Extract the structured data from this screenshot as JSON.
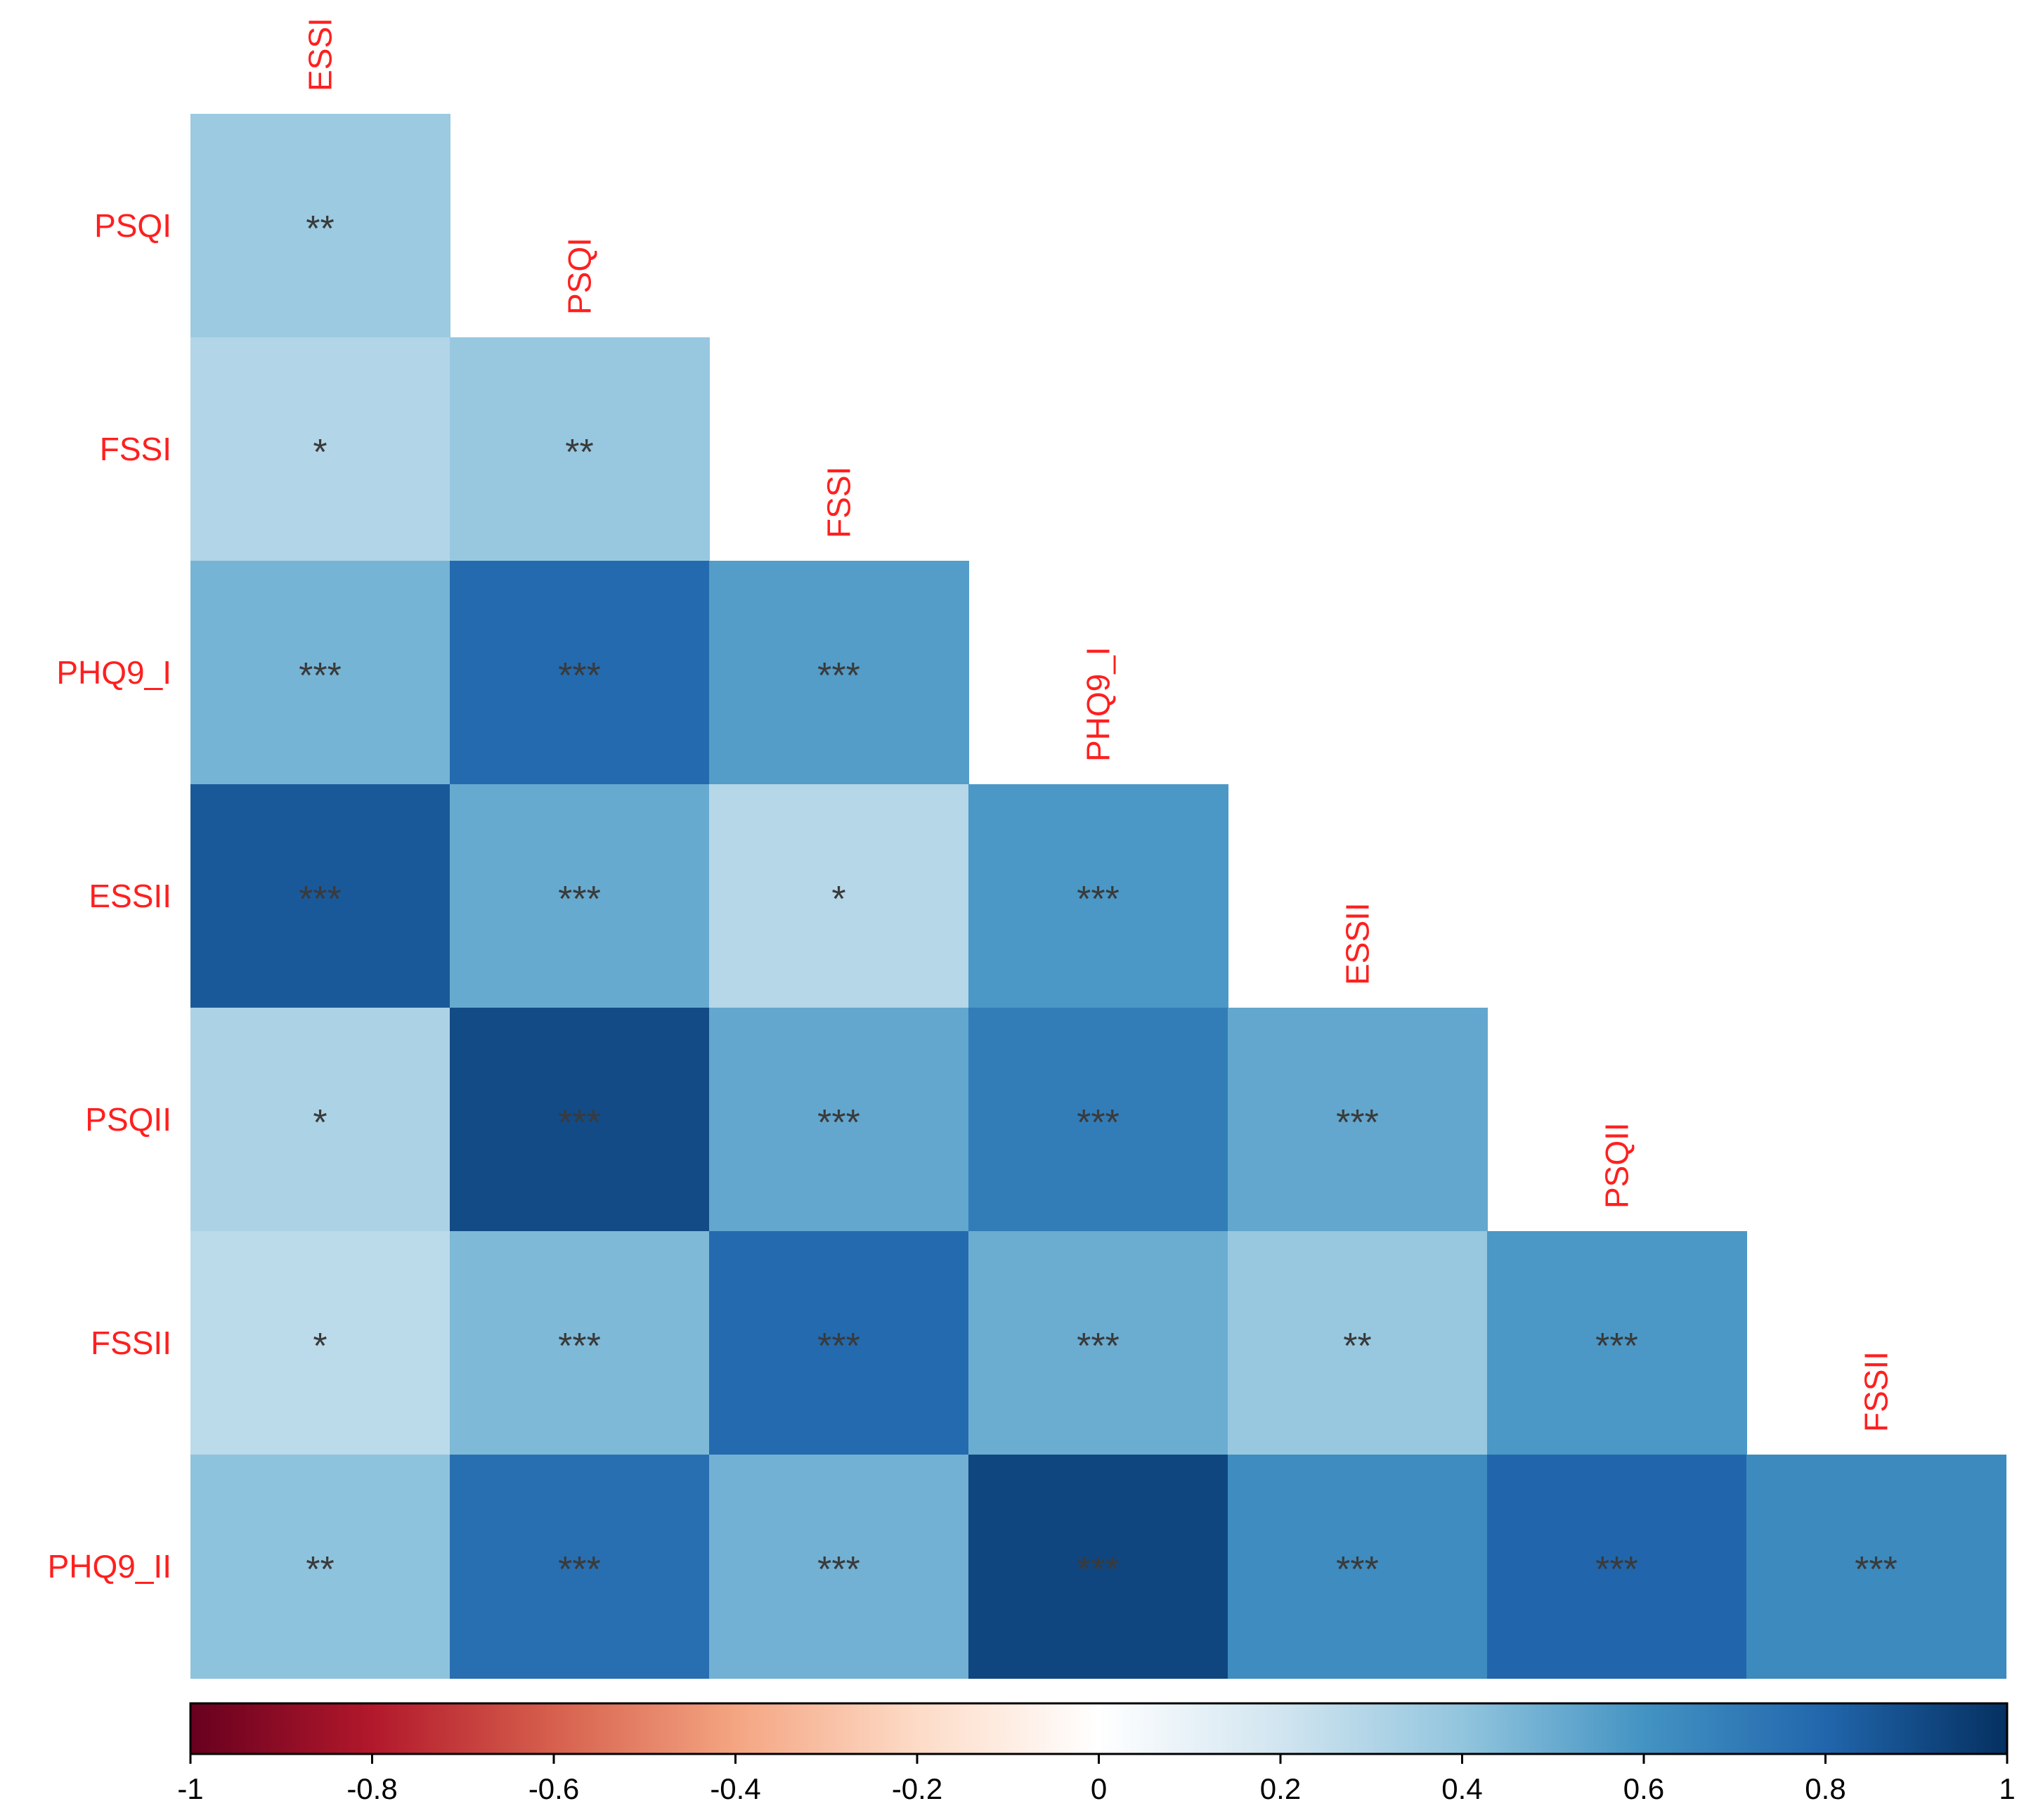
{
  "chart_data": {
    "type": "heatmap",
    "title": "",
    "variables": [
      "ESSI",
      "PSQI",
      "FSSI",
      "PHQ9_I",
      "ESSII",
      "PSQII",
      "FSSII",
      "PHQ9_II"
    ],
    "rows": [
      "PSQI",
      "FSSI",
      "PHQ9_I",
      "ESSII",
      "PSQII",
      "FSSII",
      "PHQ9_II"
    ],
    "columns": [
      "ESSI",
      "PSQI",
      "FSSI",
      "PHQ9_I",
      "ESSII",
      "PSQII",
      "FSSII"
    ],
    "values": [
      [
        0.37
      ],
      [
        0.3,
        0.38
      ],
      [
        0.47,
        0.78,
        0.56
      ],
      [
        0.85,
        0.51,
        0.29,
        0.58
      ],
      [
        0.32,
        0.9,
        0.52,
        0.7,
        0.52
      ],
      [
        0.27,
        0.45,
        0.78,
        0.5,
        0.38,
        0.58
      ],
      [
        0.41,
        0.76,
        0.48,
        0.92,
        0.63,
        0.8,
        0.64
      ]
    ],
    "significance": [
      [
        "**"
      ],
      [
        "*",
        "**"
      ],
      [
        "***",
        "***",
        "***"
      ],
      [
        "***",
        "***",
        "*",
        "***"
      ],
      [
        "*",
        "***",
        "***",
        "***",
        "***"
      ],
      [
        "*",
        "***",
        "***",
        "***",
        "**",
        "***"
      ],
      [
        "**",
        "***",
        "***",
        "***",
        "***",
        "***",
        "***"
      ]
    ],
    "colorbar": {
      "range": [
        -1,
        1
      ],
      "ticks": [
        "-1",
        "-0.8",
        "-0.6",
        "-0.4",
        "-0.2",
        "0",
        "0.2",
        "0.4",
        "0.6",
        "0.8",
        "1"
      ],
      "tick_values": [
        -1,
        -0.8,
        -0.6,
        -0.4,
        -0.2,
        0,
        0.2,
        0.4,
        0.6,
        0.8,
        1
      ],
      "colors": [
        "#67001f",
        "#b2182b",
        "#d6604d",
        "#f4a582",
        "#fddbc7",
        "#ffffff",
        "#d1e5f0",
        "#92c5de",
        "#4393c3",
        "#2166ac",
        "#053061"
      ]
    },
    "label_color": "#ff1f1f",
    "marker_color": "#3a3a3a"
  }
}
